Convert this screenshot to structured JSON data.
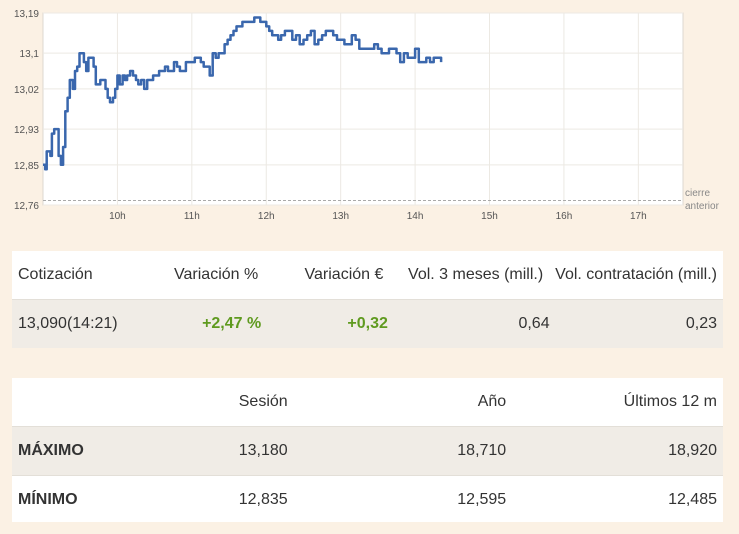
{
  "chart_data": {
    "type": "line",
    "ylim": [
      12.76,
      13.19
    ],
    "yticks": [
      "13,19",
      "13,1",
      "13,02",
      "12,93",
      "12,85",
      "12,76"
    ],
    "ytick_values": [
      13.19,
      13.1,
      13.02,
      12.93,
      12.85,
      12.76
    ],
    "xticks": [
      "10h",
      "11h",
      "12h",
      "13h",
      "14h",
      "15h",
      "16h",
      "17h"
    ],
    "xtick_values": [
      10,
      11,
      12,
      13,
      14,
      15,
      16,
      17
    ],
    "xlim": [
      9.0,
      17.6
    ],
    "reference_label_1": "cierre",
    "reference_label_2": "anterior",
    "reference_value": 12.77,
    "line_color": "#3a67ad",
    "grid": true,
    "series": [
      {
        "x": [
          9.0,
          9.03,
          9.05,
          9.07,
          9.1,
          9.12,
          9.15,
          9.18,
          9.21,
          9.24,
          9.27,
          9.3,
          9.33,
          9.36,
          9.4,
          9.43,
          9.46,
          9.49,
          9.52,
          9.55,
          9.58,
          9.61,
          9.64,
          9.68,
          9.71,
          9.74,
          9.77,
          9.8,
          9.84,
          9.87,
          9.9,
          9.94,
          9.97,
          10.0,
          10.03,
          10.07,
          10.1,
          10.13,
          10.17,
          10.21,
          10.25,
          10.28,
          10.32,
          10.36,
          10.4,
          10.44,
          10.48,
          10.52,
          10.56,
          10.6,
          10.64,
          10.68,
          10.72,
          10.76,
          10.8,
          10.84,
          10.88,
          10.92,
          10.96,
          11.0,
          11.04,
          11.08,
          11.12,
          11.16,
          11.2,
          11.24,
          11.28,
          11.32,
          11.36,
          11.4,
          11.44,
          11.48,
          11.52,
          11.56,
          11.6,
          11.64,
          11.68,
          11.72,
          11.76,
          11.8,
          11.84,
          11.88,
          11.92,
          11.96,
          12.0,
          12.04,
          12.08,
          12.12,
          12.16,
          12.2,
          12.25,
          12.3,
          12.35,
          12.4,
          12.45,
          12.5,
          12.55,
          12.6,
          12.65,
          12.7,
          12.75,
          12.8,
          12.85,
          12.9,
          12.95,
          13.0,
          13.05,
          13.1,
          13.15,
          13.2,
          13.25,
          13.3,
          13.35,
          13.4,
          13.45,
          13.5,
          13.55,
          13.6,
          13.65,
          13.7,
          13.75,
          13.8,
          13.85,
          13.9,
          13.95,
          14.0,
          14.05,
          14.1,
          14.15,
          14.2,
          14.25,
          14.3,
          14.35
        ],
        "y": [
          12.85,
          12.84,
          12.88,
          12.88,
          12.87,
          12.92,
          12.93,
          12.93,
          12.87,
          12.85,
          12.89,
          12.97,
          13.0,
          13.04,
          13.02,
          13.06,
          13.07,
          13.1,
          13.1,
          13.08,
          13.06,
          13.09,
          13.09,
          13.07,
          13.03,
          13.03,
          13.04,
          13.04,
          13.02,
          13.0,
          12.99,
          13.0,
          13.02,
          13.05,
          13.03,
          13.05,
          13.04,
          13.05,
          13.06,
          13.05,
          13.04,
          13.03,
          13.04,
          13.02,
          13.04,
          13.04,
          13.05,
          13.05,
          13.06,
          13.06,
          13.07,
          13.06,
          13.06,
          13.08,
          13.07,
          13.06,
          13.06,
          13.08,
          13.08,
          13.08,
          13.09,
          13.09,
          13.08,
          13.07,
          13.07,
          13.05,
          13.1,
          13.09,
          13.1,
          13.1,
          13.12,
          13.13,
          13.14,
          13.15,
          13.16,
          13.16,
          13.17,
          13.17,
          13.17,
          13.17,
          13.18,
          13.18,
          13.17,
          13.17,
          13.16,
          13.15,
          13.14,
          13.14,
          13.13,
          13.14,
          13.15,
          13.15,
          13.13,
          13.14,
          13.12,
          13.13,
          13.14,
          13.15,
          13.12,
          13.13,
          13.14,
          13.15,
          13.15,
          13.14,
          13.13,
          13.13,
          13.12,
          13.12,
          13.14,
          13.13,
          13.11,
          13.11,
          13.11,
          13.11,
          13.12,
          13.11,
          13.1,
          13.1,
          13.11,
          13.11,
          13.1,
          13.08,
          13.1,
          13.09,
          13.09,
          13.11,
          13.08,
          13.08,
          13.09,
          13.08,
          13.09,
          13.09,
          13.08
        ]
      }
    ]
  },
  "quote_table": {
    "headers": [
      "Cotización",
      "Variación %",
      "Variación €",
      "Vol. 3 meses (mill.)",
      "Vol. contratación (mill.)"
    ],
    "row": {
      "price": "13,090",
      "time": "(14:21)",
      "change_pct": "+2,47 %",
      "change_eur": "+0,32",
      "vol_3m": "0,64",
      "vol_trade": "0,23"
    }
  },
  "range_table": {
    "headers": [
      "",
      "Sesión",
      "Año",
      "Últimos 12 m"
    ],
    "rows": [
      {
        "label": "MÁXIMO",
        "session": "13,180",
        "year": "18,710",
        "last12": "18,920"
      },
      {
        "label": "MÍNIMO",
        "session": "12,835",
        "year": "12,595",
        "last12": "12,485"
      }
    ]
  }
}
